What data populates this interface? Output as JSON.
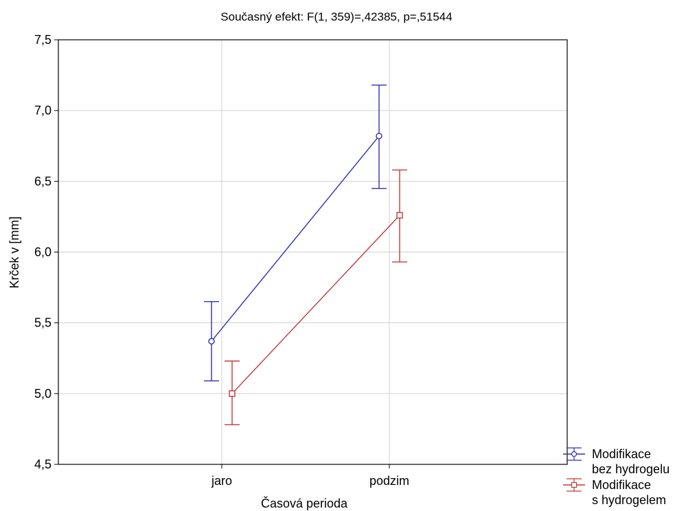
{
  "chart_data": {
    "type": "line",
    "title": "Současný efekt: F(1, 359)=,42385, p=,51544",
    "xlabel": "Časová perioda",
    "ylabel": "Krček v [mm]",
    "categories": [
      "jaro",
      "podzim"
    ],
    "ylim": [
      4.5,
      7.5
    ],
    "yticks": [
      "4,5",
      "5,0",
      "5,5",
      "6,0",
      "6,5",
      "7,0",
      "7,5"
    ],
    "ytick_values": [
      4.5,
      5.0,
      5.5,
      6.0,
      6.5,
      7.0,
      7.5
    ],
    "grid": true,
    "legend_position": "bottom-right, outside",
    "series": [
      {
        "name_lines": [
          "Modifikace",
          "bez hydrogelu"
        ],
        "color": "#2f2fb4",
        "marker": "circle",
        "values": [
          5.37,
          6.82
        ],
        "error_low": [
          5.09,
          6.45
        ],
        "error_high": [
          5.65,
          7.18
        ]
      },
      {
        "name_lines": [
          "Modifikace",
          "s hydrogelem"
        ],
        "color": "#c0393b",
        "marker": "square",
        "values": [
          5.0,
          6.26
        ],
        "error_low": [
          4.78,
          5.93
        ],
        "error_high": [
          5.23,
          6.58
        ]
      }
    ]
  }
}
